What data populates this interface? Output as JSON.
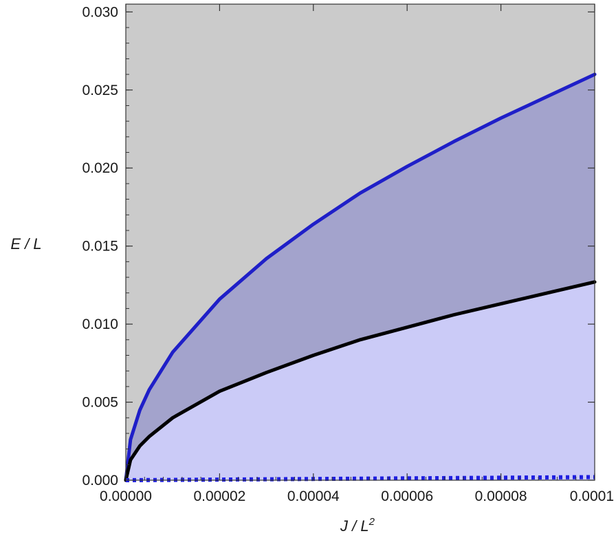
{
  "chart_data": {
    "type": "area",
    "xlabel": "J / L",
    "xlabel_superscript": "2",
    "ylabel": "E / L",
    "xlim": [
      0,
      0.0001
    ],
    "ylim": [
      0,
      0.0305
    ],
    "x_ticks": [
      {
        "value": 0.0,
        "label": "0.00000"
      },
      {
        "value": 2e-05,
        "label": "0.00002"
      },
      {
        "value": 4e-05,
        "label": "0.00004"
      },
      {
        "value": 6e-05,
        "label": "0.00006"
      },
      {
        "value": 8e-05,
        "label": "0.00008"
      },
      {
        "value": 0.0001,
        "label": "0.0001"
      }
    ],
    "y_ticks": [
      {
        "value": 0.0,
        "label": "0.000"
      },
      {
        "value": 0.005,
        "label": "0.005"
      },
      {
        "value": 0.01,
        "label": "0.010"
      },
      {
        "value": 0.015,
        "label": "0.015"
      },
      {
        "value": 0.02,
        "label": "0.020"
      },
      {
        "value": 0.025,
        "label": "0.025"
      },
      {
        "value": 0.03,
        "label": "0.030"
      }
    ],
    "grid": false,
    "background_color": "#cbcbcb",
    "series": [
      {
        "style": "solid",
        "color": "#1f1fc8",
        "fill_below_color": "#a3a3cc",
        "x": [
          0,
          1e-06,
          3e-06,
          5e-06,
          1e-05,
          2e-05,
          3e-05,
          4e-05,
          5e-05,
          6e-05,
          7e-05,
          8e-05,
          9e-05,
          0.0001
        ],
        "y": [
          0,
          0.0026,
          0.0045,
          0.0058,
          0.0082,
          0.0116,
          0.0142,
          0.0164,
          0.0184,
          0.0201,
          0.0217,
          0.0232,
          0.0246,
          0.026
        ]
      },
      {
        "style": "solid",
        "color": "#000000",
        "fill_below_color": "#cbcbf7",
        "x": [
          0,
          1e-06,
          3e-06,
          5e-06,
          1e-05,
          2e-05,
          3e-05,
          4e-05,
          5e-05,
          6e-05,
          7e-05,
          8e-05,
          9e-05,
          0.0001
        ],
        "y": [
          0,
          0.0013,
          0.0022,
          0.0028,
          0.004,
          0.0057,
          0.0069,
          0.008,
          0.009,
          0.0098,
          0.0106,
          0.0113,
          0.012,
          0.0127
        ]
      },
      {
        "style": "dotted",
        "color": "#1f1fe0",
        "x": [
          0,
          0.0001
        ],
        "y": [
          0,
          0.0002
        ]
      }
    ]
  }
}
